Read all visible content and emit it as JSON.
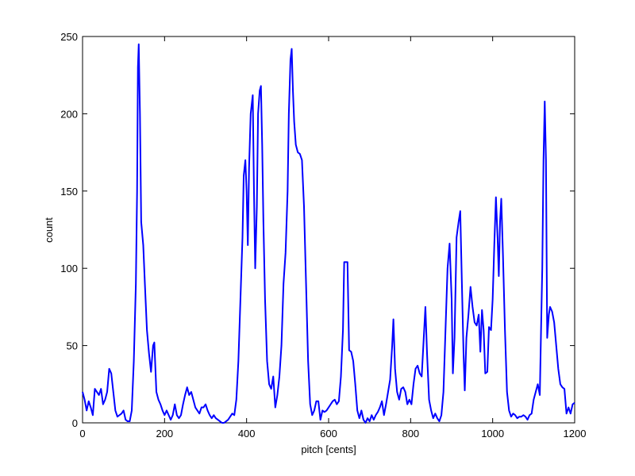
{
  "chart_data": {
    "type": "line",
    "xlabel": "pitch [cents]",
    "ylabel": "count",
    "color": "#0000ff",
    "xlim": [
      0,
      1200
    ],
    "xticks": [
      0,
      200,
      400,
      600,
      800,
      1000,
      1200
    ],
    "ylim": [
      0,
      250
    ],
    "yticks": [
      0,
      50,
      100,
      150,
      200,
      250
    ],
    "x": [
      0,
      5,
      10,
      15,
      20,
      25,
      30,
      35,
      40,
      45,
      50,
      55,
      60,
      65,
      70,
      75,
      80,
      85,
      90,
      95,
      100,
      105,
      110,
      115,
      120,
      125,
      130,
      133,
      135,
      137,
      140,
      143,
      148,
      152,
      157,
      162,
      167,
      172,
      175,
      180,
      185,
      190,
      195,
      200,
      205,
      210,
      215,
      220,
      225,
      230,
      235,
      240,
      245,
      250,
      255,
      260,
      265,
      270,
      275,
      280,
      285,
      290,
      295,
      300,
      305,
      310,
      315,
      320,
      325,
      330,
      335,
      340,
      345,
      350,
      355,
      360,
      365,
      370,
      375,
      380,
      385,
      390,
      393,
      397,
      400,
      403,
      406,
      410,
      415,
      418,
      421,
      425,
      428,
      432,
      435,
      438,
      441,
      445,
      450,
      455,
      460,
      465,
      470,
      475,
      480,
      485,
      490,
      495,
      500,
      503,
      507,
      510,
      513,
      516,
      520,
      525,
      530,
      535,
      540,
      545,
      550,
      555,
      560,
      565,
      570,
      575,
      580,
      585,
      590,
      595,
      600,
      605,
      610,
      615,
      620,
      625,
      630,
      635,
      638,
      642,
      646,
      650,
      655,
      660,
      665,
      670,
      675,
      680,
      685,
      690,
      695,
      700,
      705,
      710,
      715,
      720,
      725,
      730,
      735,
      740,
      745,
      750,
      755,
      758,
      762,
      767,
      772,
      777,
      782,
      787,
      792,
      797,
      802,
      807,
      812,
      817,
      822,
      827,
      832,
      836,
      840,
      845,
      850,
      855,
      860,
      865,
      870,
      875,
      880,
      885,
      890,
      895,
      900,
      903,
      907,
      912,
      917,
      921,
      925,
      929,
      932,
      936,
      941,
      946,
      951,
      956,
      961,
      966,
      970,
      974,
      978,
      982,
      987,
      991,
      996,
      1000,
      1004,
      1008,
      1012,
      1015,
      1018,
      1021,
      1025,
      1030,
      1035,
      1040,
      1045,
      1050,
      1055,
      1060,
      1065,
      1070,
      1075,
      1080,
      1085,
      1090,
      1095,
      1100,
      1105,
      1110,
      1115,
      1118,
      1121,
      1124,
      1127,
      1130,
      1133,
      1137,
      1140,
      1145,
      1150,
      1155,
      1160,
      1165,
      1170,
      1175,
      1180,
      1185,
      1190,
      1195,
      1200
    ],
    "values": [
      20,
      15,
      8,
      14,
      10,
      5,
      22,
      20,
      18,
      22,
      12,
      15,
      20,
      35,
      32,
      20,
      8,
      4,
      5,
      6,
      8,
      2,
      1,
      1,
      8,
      40,
      90,
      150,
      230,
      245,
      200,
      130,
      115,
      90,
      60,
      45,
      33,
      50,
      52,
      20,
      15,
      12,
      8,
      5,
      8,
      5,
      2,
      5,
      12,
      5,
      3,
      5,
      12,
      18,
      23,
      18,
      20,
      15,
      10,
      8,
      6,
      10,
      10,
      12,
      8,
      5,
      3,
      5,
      3,
      2,
      1,
      0,
      0,
      1,
      2,
      4,
      6,
      5,
      15,
      40,
      80,
      120,
      160,
      170,
      150,
      115,
      165,
      200,
      212,
      150,
      100,
      140,
      200,
      215,
      218,
      180,
      130,
      80,
      40,
      25,
      22,
      30,
      10,
      18,
      30,
      50,
      90,
      110,
      150,
      200,
      235,
      242,
      215,
      195,
      180,
      175,
      174,
      170,
      140,
      90,
      40,
      12,
      5,
      8,
      14,
      14,
      2,
      8,
      7,
      8,
      10,
      12,
      14,
      15,
      12,
      14,
      30,
      60,
      104,
      104,
      104,
      47,
      46,
      40,
      25,
      8,
      3,
      8,
      2,
      0,
      3,
      1,
      5,
      2,
      5,
      7,
      10,
      14,
      5,
      12,
      20,
      28,
      50,
      67,
      35,
      20,
      15,
      22,
      23,
      20,
      12,
      15,
      12,
      25,
      35,
      37,
      32,
      30,
      55,
      75,
      45,
      15,
      8,
      3,
      6,
      3,
      1,
      5,
      20,
      60,
      100,
      116,
      80,
      32,
      55,
      120,
      130,
      137,
      90,
      45,
      21,
      55,
      70,
      88,
      75,
      65,
      63,
      70,
      46,
      73,
      60,
      32,
      33,
      62,
      60,
      80,
      115,
      146,
      120,
      95,
      130,
      145,
      110,
      60,
      20,
      8,
      4,
      6,
      5,
      3,
      4,
      4,
      5,
      4,
      2,
      5,
      6,
      15,
      20,
      25,
      18,
      60,
      100,
      170,
      208,
      170,
      55,
      70,
      75,
      72,
      65,
      50,
      35,
      25,
      23,
      22,
      6,
      10,
      6,
      12,
      13
    ]
  }
}
